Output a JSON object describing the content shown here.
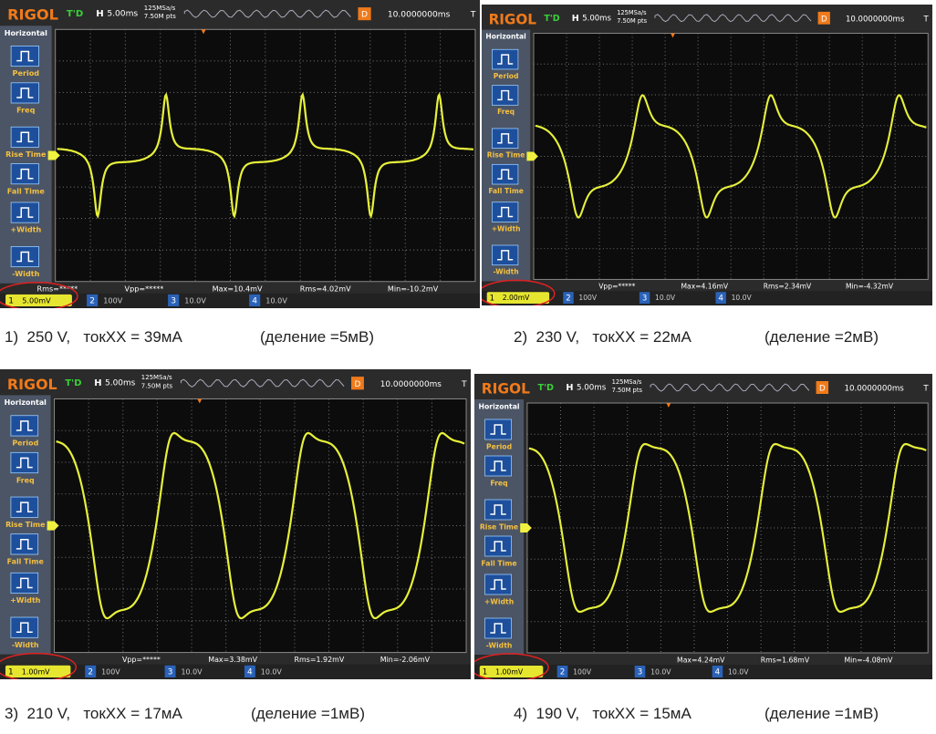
{
  "panels": [
    {
      "screen": {
        "brand": "RIGOL",
        "trigger_status": "T'D",
        "timebase_label": "H",
        "timebase": "5.00ms",
        "sample_rate": "125MSa/s",
        "memory_depth": "7.50M pts",
        "delay_label": "D",
        "delay": "10.0000000ms",
        "trigger_label": "T",
        "menu": [
          "Horizontal",
          "Period",
          "Freq",
          "Rise Time",
          "Fall Time",
          "+Width",
          "-Width"
        ],
        "channels": [
          {
            "number": "1",
            "scale": "5.00mV"
          },
          {
            "number": "2",
            "scale": "100V"
          },
          {
            "number": "3",
            "scale": "10.0V"
          },
          {
            "number": "4",
            "scale": "10.0V"
          }
        ],
        "measurements": [
          "Rms=*****",
          "Vpp=*****",
          "Max=10.4mV",
          "Rms=4.02mV",
          "Min=-10.2mV"
        ]
      },
      "caption": {
        "label": "1)  250 V,   токХХ = 39мА",
        "note": "(деление =5мВ)"
      }
    },
    {
      "screen": {
        "brand": "RIGOL",
        "trigger_status": "T'D",
        "timebase_label": "H",
        "timebase": "5.00ms",
        "sample_rate": "125MSa/s",
        "memory_depth": "7.50M pts",
        "delay_label": "D",
        "delay": "10.0000000ms",
        "trigger_label": "T",
        "menu": [
          "Horizontal",
          "Period",
          "Freq",
          "Rise Time",
          "Fall Time",
          "+Width",
          "-Width"
        ],
        "channels": [
          {
            "number": "1",
            "scale": "2.00mV"
          },
          {
            "number": "2",
            "scale": "100V"
          },
          {
            "number": "3",
            "scale": "10.0V"
          },
          {
            "number": "4",
            "scale": "10.0V"
          }
        ],
        "measurements": [
          "Vpp=*****",
          "Max=4.16mV",
          "Rms=2.34mV",
          "Min=-4.32mV"
        ]
      },
      "caption": {
        "label": "2)  230 V,   токХХ = 22мА",
        "note": "(деление =2мВ)"
      }
    },
    {
      "screen": {
        "brand": "RIGOL",
        "trigger_status": "T'D",
        "timebase_label": "H",
        "timebase": "5.00ms",
        "sample_rate": "125MSa/s",
        "memory_depth": "7.50M pts",
        "delay_label": "D",
        "delay": "10.0000000ms",
        "trigger_label": "T",
        "menu": [
          "Horizontal",
          "Period",
          "Freq",
          "Rise Time",
          "Fall Time",
          "+Width",
          "-Width"
        ],
        "channels": [
          {
            "number": "1",
            "scale": "1.00mV"
          },
          {
            "number": "2",
            "scale": "100V"
          },
          {
            "number": "3",
            "scale": "10.0V"
          },
          {
            "number": "4",
            "scale": "10.0V"
          }
        ],
        "measurements": [
          "Vpp=*****",
          "Max=3.38mV",
          "Rms=1.92mV",
          "Min=-2.06mV"
        ]
      },
      "caption": {
        "label": "3)  210 V,   токХХ = 17мА",
        "note": "(деление =1мВ)"
      }
    },
    {
      "screen": {
        "brand": "RIGOL",
        "trigger_status": "T'D",
        "timebase_label": "H",
        "timebase": "5.00ms",
        "sample_rate": "125MSa/s",
        "memory_depth": "7.50M pts",
        "delay_label": "D",
        "delay": "10.0000000ms",
        "trigger_label": "T",
        "menu": [
          "Horizontal",
          "Period",
          "Freq",
          "Rise Time",
          "Fall Time",
          "+Width",
          "-Width"
        ],
        "channels": [
          {
            "number": "1",
            "scale": "1.00mV"
          },
          {
            "number": "2",
            "scale": "100V"
          },
          {
            "number": "3",
            "scale": "10.0V"
          },
          {
            "number": "4",
            "scale": "10.0V"
          }
        ],
        "measurements": [
          "Max=4.24mV",
          "Rms=1.68mV",
          "Min=-4.08mV"
        ]
      },
      "caption": {
        "label": "4)  190 V,   токХХ = 15мА",
        "note": "(деление =1мВ)"
      }
    }
  ]
}
